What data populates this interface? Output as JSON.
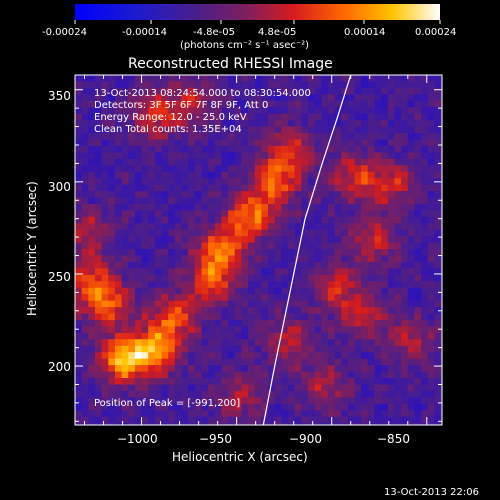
{
  "colorbar": {
    "tick_labels": [
      "-0.00024",
      "-0.00014",
      "-4.8e-05",
      "4.8e-05",
      "0.00014",
      "0.00024"
    ],
    "tick_values": [
      -0.00024,
      -0.00014,
      -4.8e-05,
      4.8e-05,
      0.00014,
      0.00024
    ],
    "range": [
      -0.00024,
      0.00024
    ],
    "unit_label": "(photons cm⁻² s⁻¹ asec⁻²)"
  },
  "chart_data": {
    "type": "heatmap",
    "title": "Reconstructed RHESSI Image",
    "xlabel": "Heliocentric X (arcsec)",
    "ylabel": "Heliocentric Y (arcsec)",
    "xlim": [
      -1035,
      -842
    ],
    "ylim": [
      168,
      358
    ],
    "x_ticks": [
      -1000,
      -950,
      -900,
      -850
    ],
    "x_tick_labels": [
      "−1000",
      "−950",
      "−900",
      "−850"
    ],
    "y_ticks": [
      200,
      250,
      300,
      350
    ],
    "y_tick_labels": [
      "200",
      "250",
      "300",
      "350"
    ],
    "colormap": "blue-purple-red-orange-yellow-white",
    "colormap_colors": [
      "#0000ff",
      "#4a1e8c",
      "#7e1f5e",
      "#d81c1c",
      "#ff6a00",
      "#ffc400",
      "#ffffff"
    ],
    "limb": {
      "x": [
        -936,
        -930,
        -922,
        -914,
        -905,
        -897,
        -890
      ],
      "y": [
        168,
        200,
        240,
        280,
        310,
        335,
        358
      ]
    },
    "blobs": [
      {
        "x": -1012,
        "y": 205,
        "amp": 1.0
      },
      {
        "x": -995,
        "y": 210,
        "amp": 0.9
      },
      {
        "x": -985,
        "y": 228,
        "amp": 0.7
      },
      {
        "x": -1020,
        "y": 235,
        "amp": 0.7
      },
      {
        "x": -1028,
        "y": 248,
        "amp": 0.6
      },
      {
        "x": -965,
        "y": 248,
        "amp": 0.7
      },
      {
        "x": -960,
        "y": 265,
        "amp": 0.75
      },
      {
        "x": -945,
        "y": 282,
        "amp": 0.8
      },
      {
        "x": -932,
        "y": 300,
        "amp": 0.7
      },
      {
        "x": -925,
        "y": 318,
        "amp": 0.65
      },
      {
        "x": -995,
        "y": 338,
        "amp": 0.6
      },
      {
        "x": -975,
        "y": 345,
        "amp": 0.5
      },
      {
        "x": -890,
        "y": 305,
        "amp": 0.6
      },
      {
        "x": -870,
        "y": 300,
        "amp": 0.55
      },
      {
        "x": -880,
        "y": 270,
        "amp": 0.55
      },
      {
        "x": -900,
        "y": 245,
        "amp": 0.55
      },
      {
        "x": -925,
        "y": 215,
        "amp": 0.5
      },
      {
        "x": -885,
        "y": 230,
        "amp": 0.5
      },
      {
        "x": -860,
        "y": 215,
        "amp": 0.45
      },
      {
        "x": -950,
        "y": 185,
        "amp": 0.45
      },
      {
        "x": -905,
        "y": 190,
        "amp": 0.45
      },
      {
        "x": -1030,
        "y": 275,
        "amp": 0.45
      }
    ]
  },
  "annotations": {
    "time_range": "13-Oct-2013 08:24:54.000 to 08:30:54.000",
    "detectors": "Detectors: 3F 5F 6F 7F 8F 9F, Att 0",
    "energy": "Energy Range: 12.0 - 25.0 keV",
    "clean": "Clean     Total counts: 1.35E+04",
    "peak": "Position of Peak = [-991,200]"
  },
  "footer": {
    "timestamp": "13-Oct-2013 22:06"
  }
}
